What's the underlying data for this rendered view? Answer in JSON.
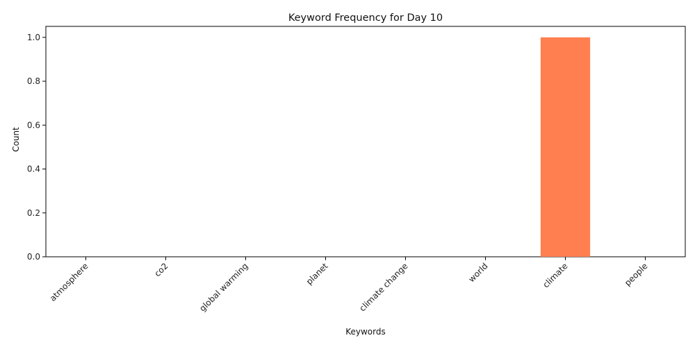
{
  "chart_data": {
    "type": "bar",
    "title": "Keyword Frequency for Day 10",
    "xlabel": "Keywords",
    "ylabel": "Count",
    "categories": [
      "atmosphere",
      "co2",
      "global warming",
      "planet",
      "climate change",
      "world",
      "climate",
      "people"
    ],
    "values": [
      0,
      0,
      0,
      0,
      0,
      0,
      1,
      0
    ],
    "ylim": [
      0,
      1.05
    ],
    "yticks": [
      0.0,
      0.2,
      0.4,
      0.6,
      0.8,
      1.0
    ],
    "ytick_labels": [
      "0.0",
      "0.2",
      "0.4",
      "0.6",
      "0.8",
      "1.0"
    ],
    "bar_color": "#ff7f50",
    "grid": false,
    "xtick_rotation": "45 degrees"
  }
}
